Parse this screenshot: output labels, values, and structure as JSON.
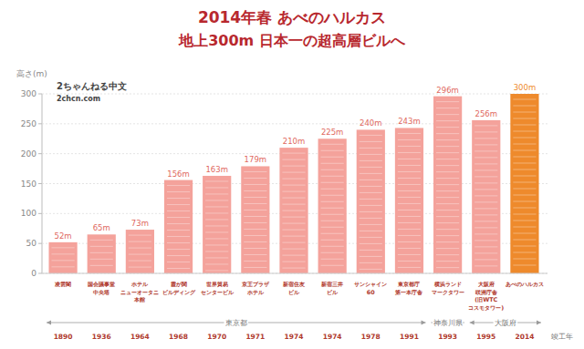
{
  "chart_data": {
    "type": "bar",
    "title": "2014年春 あべのハルカス",
    "subtitle": "地上300m 日本一の超高層ビルへ",
    "y_label": "高さ(m)",
    "x_label": "竣工年",
    "annotations": [
      "2ちゃんねる中文",
      "2chcn.com"
    ],
    "categories": [
      "凌雲閣",
      "国会議事堂\n中央塔",
      "ホテル\nニューオータニ\n本館",
      "霞が関\nビルディング",
      "世界貿易\nセンタービル",
      "京王プラザ\nホテル",
      "新宿住友\nビル",
      "新宿三井\nビル",
      "サンシャイン\n60",
      "東京都庁\n第一本庁舎",
      "横浜ランド\nマークタワー",
      "大阪府\n咲洲庁舎\n(旧WTC\nコスモタワー)",
      "あべのハルカス"
    ],
    "values": [
      52,
      65,
      73,
      156,
      163,
      179,
      210,
      225,
      240,
      243,
      296,
      256,
      300
    ],
    "value_labels": [
      "52m",
      "65m",
      "73m",
      "156m",
      "163m",
      "179m",
      "210m",
      "225m",
      "240m",
      "243m",
      "296m",
      "256m",
      "300m"
    ],
    "years": [
      1890,
      1936,
      1964,
      1968,
      1970,
      1971,
      1974,
      1974,
      1978,
      1991,
      1993,
      1995,
      2014
    ],
    "regions": [
      {
        "label": "東京都",
        "count": 10
      },
      {
        "label": "神奈川県",
        "count": 1
      },
      {
        "label": "大阪府",
        "count": 2
      }
    ],
    "colors": [
      "#f4a29b",
      "#f4a29b",
      "#f4a29b",
      "#f4a29b",
      "#f4a29b",
      "#f4a29b",
      "#f4a29b",
      "#f4a29b",
      "#f4a29b",
      "#f4a29b",
      "#f4a29b",
      "#f4a29b",
      "#ee8a2c"
    ],
    "ylim": [
      0,
      300
    ],
    "yticks": [
      0,
      50,
      100,
      150,
      200,
      250,
      300
    ],
    "grid": true,
    "data_labels": true
  }
}
